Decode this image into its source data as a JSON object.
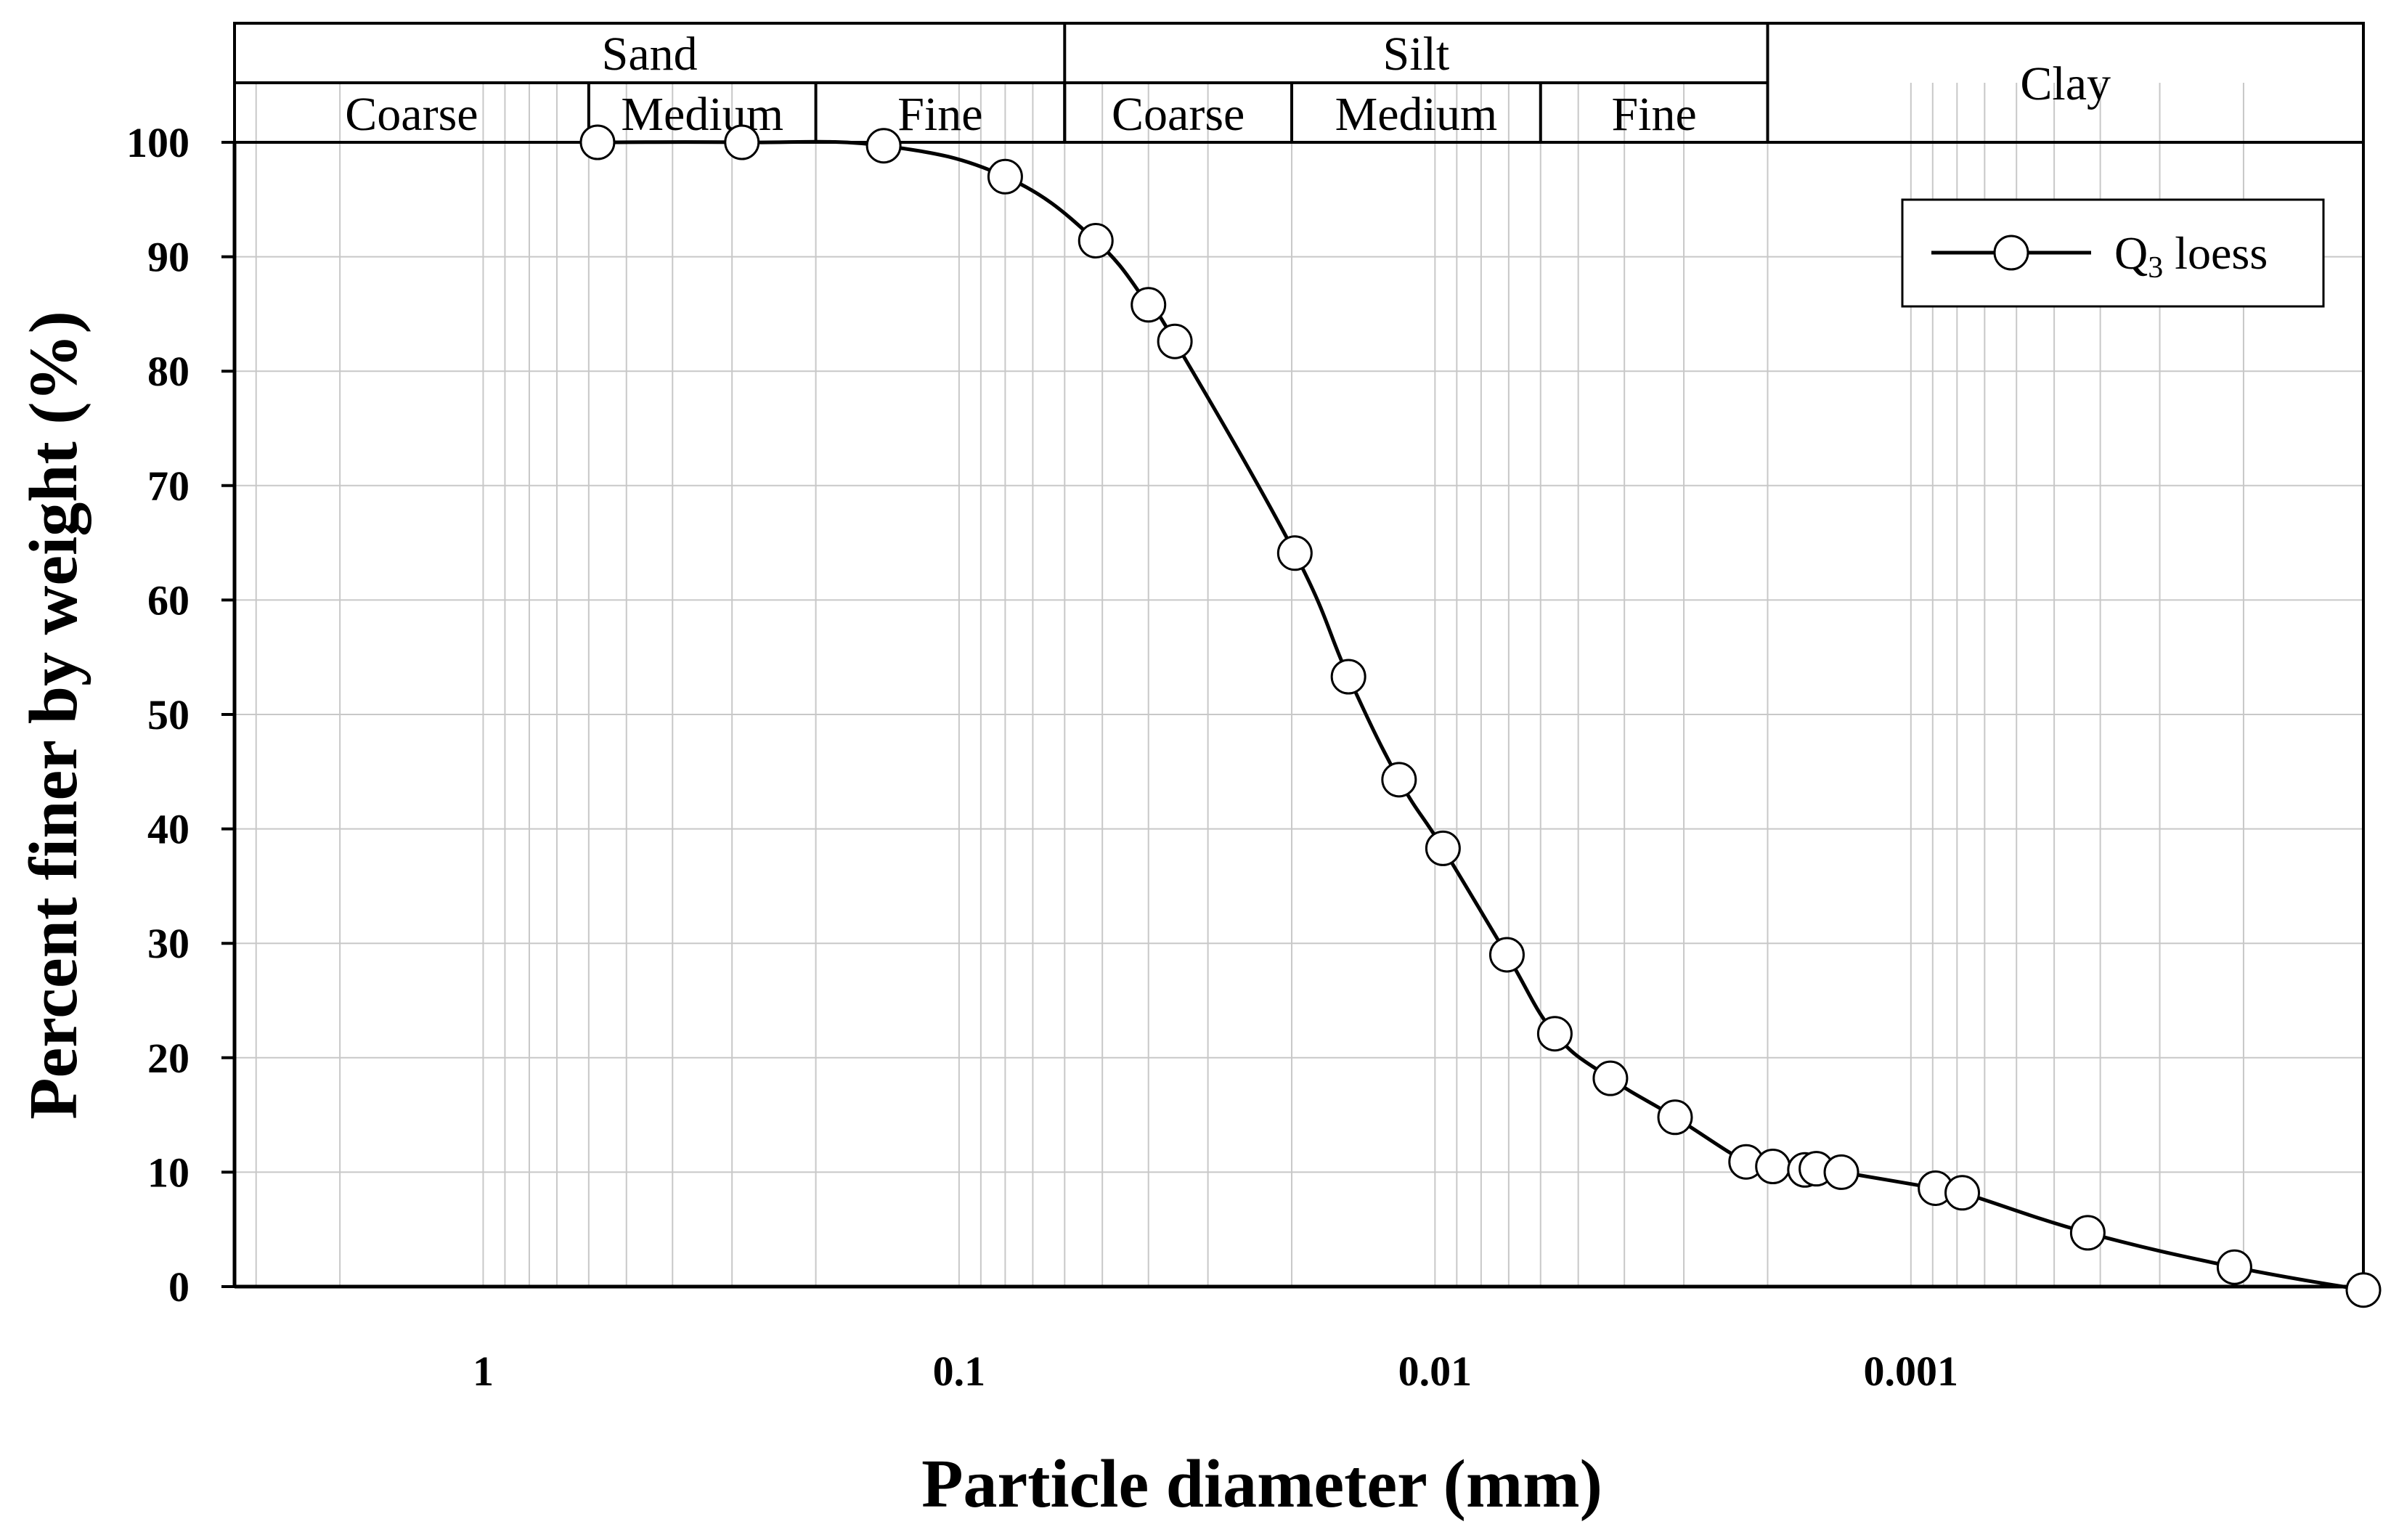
{
  "chart_data": {
    "type": "line",
    "xlabel": "Particle diameter (mm)",
    "ylabel": "Percent finer by weight (%)",
    "x_scale": "log",
    "x_reversed": true,
    "xlim": [
      3.33,
      0.000112
    ],
    "ylim": [
      0,
      100
    ],
    "xticks": [
      {
        "value": 1,
        "label": "1"
      },
      {
        "value": 0.1,
        "label": "0.1"
      },
      {
        "value": 0.01,
        "label": "0.01"
      },
      {
        "value": 0.001,
        "label": "0.001"
      }
    ],
    "yticks": [
      0,
      10,
      20,
      30,
      40,
      50,
      60,
      70,
      80,
      90,
      100
    ],
    "grid": true,
    "legend_position": "top-right",
    "series": [
      {
        "name_prefix": "Q",
        "name_sub": "3",
        "name_suffix": " loess",
        "color": "#000000",
        "marker": "circle-open",
        "points": [
          {
            "x": 0.575,
            "y": 100.0
          },
          {
            "x": 0.286,
            "y": 100.0
          },
          {
            "x": 0.144,
            "y": 99.7
          },
          {
            "x": 0.08,
            "y": 97.0
          },
          {
            "x": 0.0516,
            "y": 91.4
          },
          {
            "x": 0.04,
            "y": 85.8
          },
          {
            "x": 0.0352,
            "y": 82.6
          },
          {
            "x": 0.0197,
            "y": 64.1
          },
          {
            "x": 0.0152,
            "y": 53.3
          },
          {
            "x": 0.0119,
            "y": 44.3
          },
          {
            "x": 0.00962,
            "y": 38.3
          },
          {
            "x": 0.00706,
            "y": 29.0
          },
          {
            "x": 0.0056,
            "y": 22.1
          },
          {
            "x": 0.00428,
            "y": 18.2
          },
          {
            "x": 0.00313,
            "y": 14.8
          },
          {
            "x": 0.00222,
            "y": 10.9
          },
          {
            "x": 0.00195,
            "y": 10.5
          },
          {
            "x": 0.00167,
            "y": 10.2
          },
          {
            "x": 0.00158,
            "y": 10.3
          },
          {
            "x": 0.0014,
            "y": 10.0
          },
          {
            "x": 0.000888,
            "y": 8.6
          },
          {
            "x": 0.00078,
            "y": 8.2
          },
          {
            "x": 0.000425,
            "y": 4.7
          },
          {
            "x": 0.000209,
            "y": 1.7
          },
          {
            "x": 0.000112,
            "y": -0.3
          }
        ]
      }
    ],
    "soil_classification": {
      "groups": [
        {
          "label": "Sand",
          "from": 3.33,
          "to": 0.06
        },
        {
          "label": "Silt",
          "from": 0.06,
          "to": 0.002
        },
        {
          "label": "Clay",
          "from": 0.002,
          "to": 0.000112
        }
      ],
      "subgroups": [
        {
          "label": "Coarse",
          "from": 3.33,
          "to": 0.6
        },
        {
          "label": "Medium",
          "from": 0.6,
          "to": 0.2
        },
        {
          "label": "Fine",
          "from": 0.2,
          "to": 0.06
        },
        {
          "label": "Coarse",
          "from": 0.06,
          "to": 0.02
        },
        {
          "label": "Medium",
          "from": 0.02,
          "to": 0.006
        },
        {
          "label": "Fine",
          "from": 0.006,
          "to": 0.002
        }
      ]
    }
  }
}
